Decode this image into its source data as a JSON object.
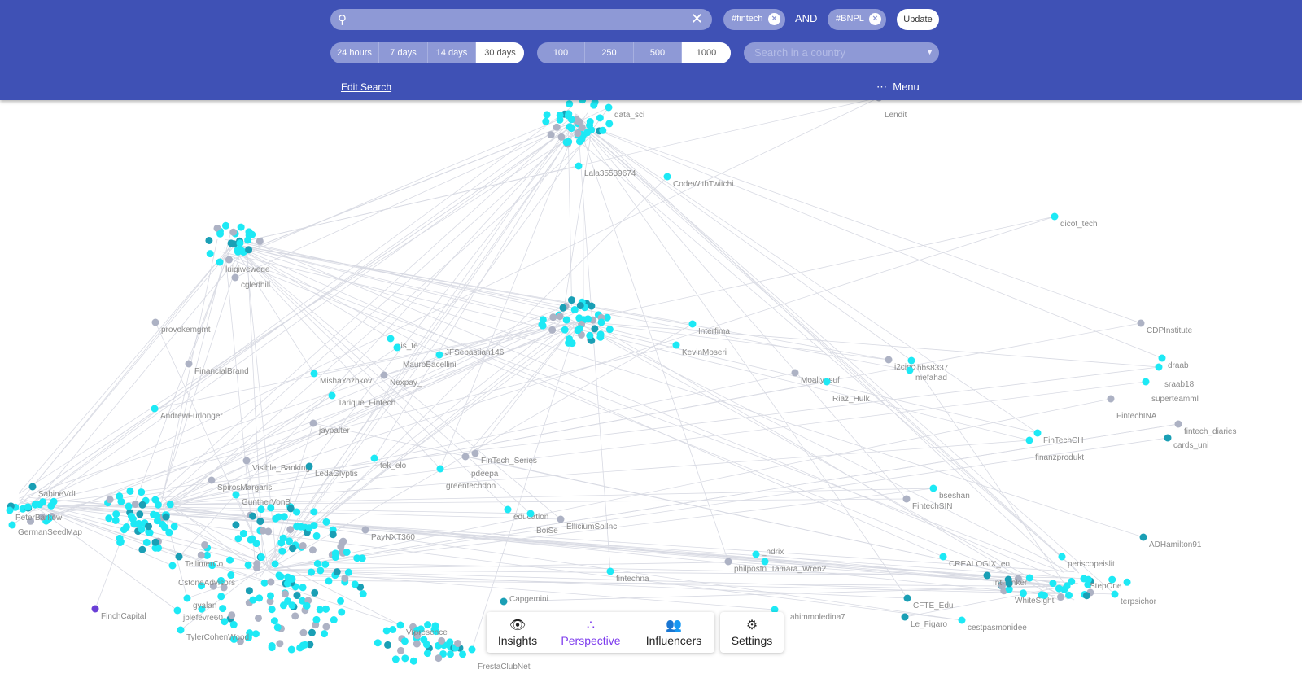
{
  "header": {
    "search_value": "",
    "chips": [
      "#fintech",
      "#BNPL"
    ],
    "and_label": "AND",
    "update_label": "Update",
    "time_ranges": [
      "24 hours",
      "7 days",
      "14 days",
      "30 days"
    ],
    "time_selected": "30 days",
    "limits": [
      "100",
      "250",
      "500",
      "1000"
    ],
    "limit_selected": "1000",
    "country_placeholder": "Search in a country",
    "edit_search": "Edit Search",
    "menu_label": "Menu"
  },
  "nav": {
    "items": [
      {
        "label": "Insights",
        "icon": "eye-icon"
      },
      {
        "label": "Perspective",
        "icon": "dots-icon"
      },
      {
        "label": "Influencers",
        "icon": "people-icon"
      }
    ],
    "settings": {
      "label": "Settings",
      "icon": "gear-icon"
    },
    "active": "Perspective"
  },
  "colors": {
    "header": "#3f51b5",
    "node_cyan": "#1de9f5",
    "node_teal": "#1a9fb5",
    "node_gray": "#adb2c4",
    "node_purple": "#6a3fd6",
    "edge": "#d8dae3"
  },
  "graph": {
    "nodes": [
      "data_sci",
      "Lala35539674",
      "CodeWithTwitchi",
      "dicot_tech",
      "Lendit",
      "cgledhill",
      "luigiwewege",
      "provokemgmt",
      "FinancialBrand",
      "CDPInstitute",
      "Interfima",
      "KevinMoseri",
      "dis_te",
      "MauroBacellini",
      "JFSebastian146",
      "MishaYozhkov",
      "Nexpay_",
      "Moaliyusuf",
      "Riaz_Hulk",
      "i2cinc",
      "hbs8337",
      "mefahad",
      "draab",
      "sraab18",
      "superteamml",
      "FintechINA",
      "fintech_diaries",
      "cards_uni",
      "FinTechCH",
      "finanzprodukt",
      "Tarique_Fintech",
      "jaypalter",
      "tek_elo",
      "FinTech_Series",
      "pdeepa",
      "greentechdon",
      "Visible_Banking",
      "LedaGlyptis",
      "bseshan",
      "FintechSIN",
      "education",
      "BoiSe",
      "ElliciumSolInc",
      "PayNXT360",
      "fintechna",
      "philpostn",
      "_ndrix",
      "Tamara_Wren2",
      "CREALOGIX_en",
      "periscopeislit",
      "ADHamilton91",
      "Capgemini",
      "FinchCapital",
      "jblefevre60",
      "TylerCohenWood",
      "ahimmoledina7",
      "CFTE_Edu",
      "Le_Figaro",
      "cestpasmonidee",
      "SabineVdL",
      "PeterBarkow",
      "GermanSeedMap",
      "AndrewFurlonger",
      "StepOne",
      "SpirosMargaris",
      "GuntherVonB",
      "TellimerCo",
      "CstoneAdvisors",
      "gvalan",
      "FrestaClubNet",
      "Vrpresence",
      "IntFanker",
      "WhiteSight",
      "terpsichor"
    ]
  }
}
